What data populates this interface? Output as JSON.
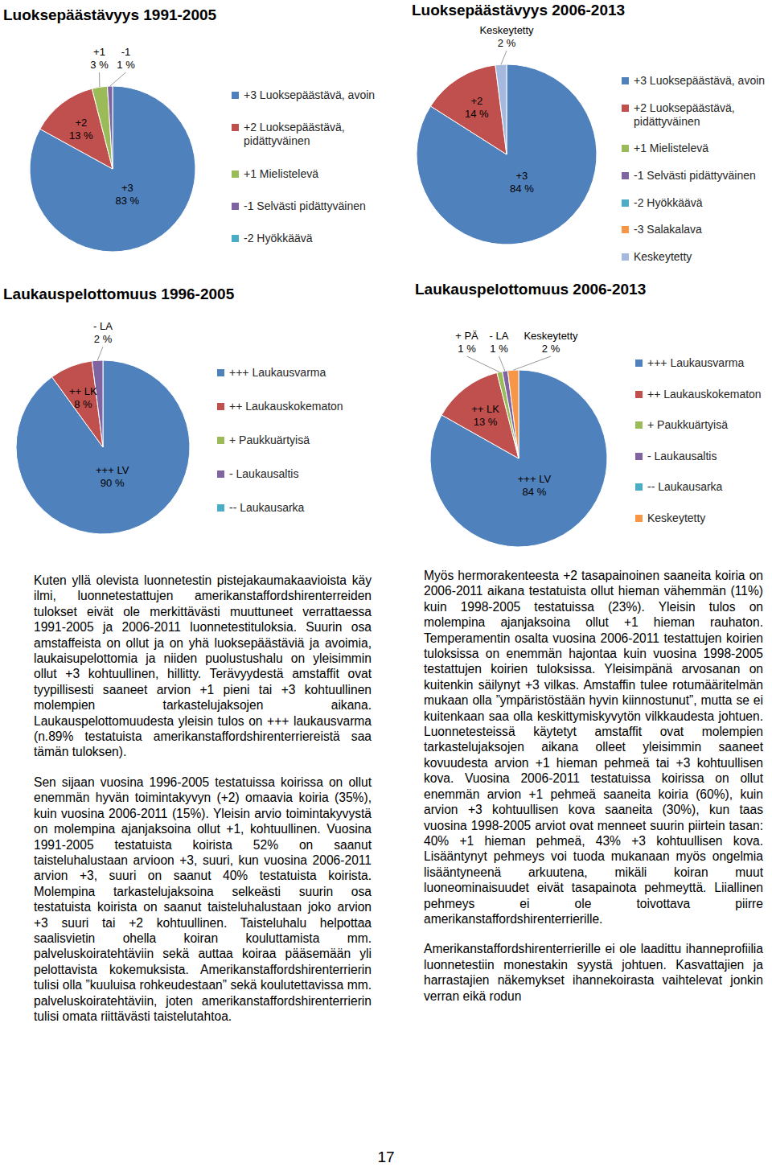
{
  "chart_data": [
    {
      "type": "pie",
      "title": "Luoksepäästävyys 1991-2005",
      "categories": [
        "+3 Luoksepäästävä, avoin",
        "+2 Luoksepäästävä, pidättyväinen",
        "+1 Mielistelevä",
        "-1 Selvästi pidättyväinen",
        "-2 Hyökkäävä"
      ],
      "values": [
        83,
        13,
        3,
        1,
        0
      ],
      "slice_labels": [
        "+3",
        "+2",
        "+1",
        "-1",
        null
      ],
      "value_labels": [
        "83 %",
        "13 %",
        "3 %",
        "1 %",
        null
      ],
      "colors": [
        "#4f81bd",
        "#c0504d",
        "#9bbb59",
        "#8064a2",
        "#4bacc6"
      ],
      "data_labels": true,
      "legend": "right"
    },
    {
      "type": "pie",
      "title": "Luoksepäästävyys 2006-2013",
      "categories": [
        "+3 Luoksepäästävä, avoin",
        "+2 Luoksepäästävä, pidättyväinen",
        "+1 Mielistelevä",
        "-1 Selvästi pidättyväinen",
        "-2 Hyökkäävä",
        "-3 Salakalava",
        "Keskeytetty"
      ],
      "values": [
        84,
        14,
        0,
        0,
        0,
        0,
        2
      ],
      "slice_labels": [
        "+3",
        "+2",
        null,
        null,
        null,
        null,
        "Keskeytetty"
      ],
      "value_labels": [
        "84 %",
        "14 %",
        null,
        null,
        null,
        null,
        "2 %"
      ],
      "colors": [
        "#4f81bd",
        "#c0504d",
        "#9bbb59",
        "#8064a2",
        "#4bacc6",
        "#f79646",
        "#a5b9de"
      ],
      "data_labels": true,
      "legend": "right"
    },
    {
      "type": "pie",
      "title": "Laukauspelottomuus 1996-2005",
      "categories": [
        "+++ Laukausvarma",
        "++ Laukauskokematon",
        "+ Paukkuärtyisä",
        "- Laukausaltis",
        "-- Laukausarka"
      ],
      "values": [
        90,
        8,
        0,
        2,
        0
      ],
      "slice_labels": [
        "+++ LV",
        "++ LK",
        null,
        "- LA",
        null
      ],
      "value_labels": [
        "90 %",
        "8 %",
        null,
        "2 %",
        null
      ],
      "colors": [
        "#4f81bd",
        "#c0504d",
        "#9bbb59",
        "#8064a2",
        "#4bacc6"
      ],
      "data_labels": true,
      "legend": "right"
    },
    {
      "type": "pie",
      "title": "Laukauspelottomuus 2006-2013",
      "categories": [
        "+++ Laukausvarma",
        "++ Laukauskokematon",
        "+ Paukkuärtyisä",
        "- Laukausaltis",
        "-- Laukausarka",
        "Keskeytetty"
      ],
      "values": [
        84,
        13,
        1,
        1,
        0,
        2
      ],
      "slice_labels": [
        "+++ LV",
        "++ LK",
        "+ PÄ",
        "- LA",
        null,
        "Keskeytetty"
      ],
      "value_labels": [
        "84 %",
        "13 %",
        "1 %",
        "1 %",
        null,
        "2 %"
      ],
      "colors": [
        "#4f81bd",
        "#c0504d",
        "#9bbb59",
        "#8064a2",
        "#4bacc6",
        "#f79646"
      ],
      "data_labels": true,
      "legend": "right"
    }
  ],
  "document": {
    "columns": [
      [
        "Kuten yllä olevista luonnetestin pistejakaumakaavioista käy ilmi, luonnetestattujen amerikanstaffordshirenterreiden tulokset eivät ole merkittävästi muuttuneet verrattaessa 1991-2005 ja 2006-2011 luonnetestituloksia. Suurin osa amstaffeista on ollut ja on yhä luoksepäästäviä ja avoimia, laukaisupelottomia ja niiden puolustushalu on yleisimmin ollut +3 kohtuullinen, hillitty. Terävyydestä amstaffit ovat tyypillisesti saaneet arvion +1 pieni tai +3 kohtuullinen molempien tarkastelujaksojen aikana. Laukauspelottomuudesta yleisin tulos on +++ laukausvarma (n.89% testatuista amerikanstaffordshirenterriereistä saa tämän tuloksen).",
        "Sen sijaan vuosina 1996-2005 testatuissa koirissa on ollut enemmän hyvän toimintakyvyn (+2) omaavia koiria (35%), kuin vuosina 2006-2011 (15%). Yleisin arvio toimintakyvystä on molempina ajanjaksoina ollut +1, kohtuullinen. Vuosina 1991-2005 testatuista koirista 52% on saanut taisteluhalustaan arvioon +3, suuri, kun vuosina 2006-2011 arvion +3, suuri on saanut 40% testatuista koirista. Molempina tarkastelujaksoina selkeästi suurin osa testatuista koirista on saanut taisteluhalustaan joko arvion +3 suuri tai +2 kohtuullinen. Taisteluhalu helpottaa saalisvietin ohella koiran kouluttamista mm. palveluskoiratehtäviin sekä auttaa koiraa pääsemään yli pelottavista kokemuksista. Amerikanstaffordshirenterrierin tulisi olla ”kuuluisa rohkeudestaan” sekä koulutettavissa mm. palveluskoiratehtäviin, joten amerikanstaffordshirenterrierin tulisi omata riittävästi taistelutahtoa."
      ],
      [
        "Myös hermorakenteesta +2 tasapainoinen saaneita koiria on 2006-2011 aikana testatuista ollut hieman vähemmän (11%) kuin 1998-2005 testatuissa (23%). Yleisin tulos on molempina ajanjaksoina ollut +1 hieman rauhaton. Temperamentin osalta vuosina 2006-2011 testattujen koirien tuloksissa on enemmän hajontaa kuin vuosina 1998-2005 testattujen koirien tuloksissa. Yleisimpänä arvosanan on kuitenkin säilynyt +3 vilkas. Amstaffin tulee rotumääritelmän mukaan olla ”ympäristöstään hyvin kiinnostunut”, mutta se ei kuitenkaan saa olla keskittymiskyvytön vilkkaudesta johtuen. Luonnetesteissä käytetyt amstaffit ovat molempien tarkastelujaksojen aikana olleet yleisimmin saaneet kovuudesta arvion +1 hieman pehmeä tai +3 kohtuullisen kova. Vuosina 2006-2011 testatuissa koirissa on ollut enemmän arvion +1 pehmeä saaneita koiria (60%), kuin arvion +3 kohtuullisen kova saaneita (30%), kun taas vuosina 1998-2005 arviot ovat menneet suurin piirtein tasan: 40% +1 hieman pehmeä, 43% +3 kohtuullisen kova. Lisääntynyt pehmeys voi tuoda mukanaan myös ongelmia lisääntyneenä arkuutena, mikäli koiran muut luoneominaisuudet eivät tasapainota pehmeyttä. Liiallinen pehmeys ei ole toivottava piirre amerikanstaffordshirenterrierille.",
        "Amerikanstaffordshirenterrierille ei ole laadittu ihanneprofiilia luonnetestiin monestakin syystä johtuen. Kasvattajien ja harrastajien näkemykset ihannekoirasta vaihtelevat jonkin verran eikä rodun"
      ]
    ],
    "page_number": "17"
  }
}
